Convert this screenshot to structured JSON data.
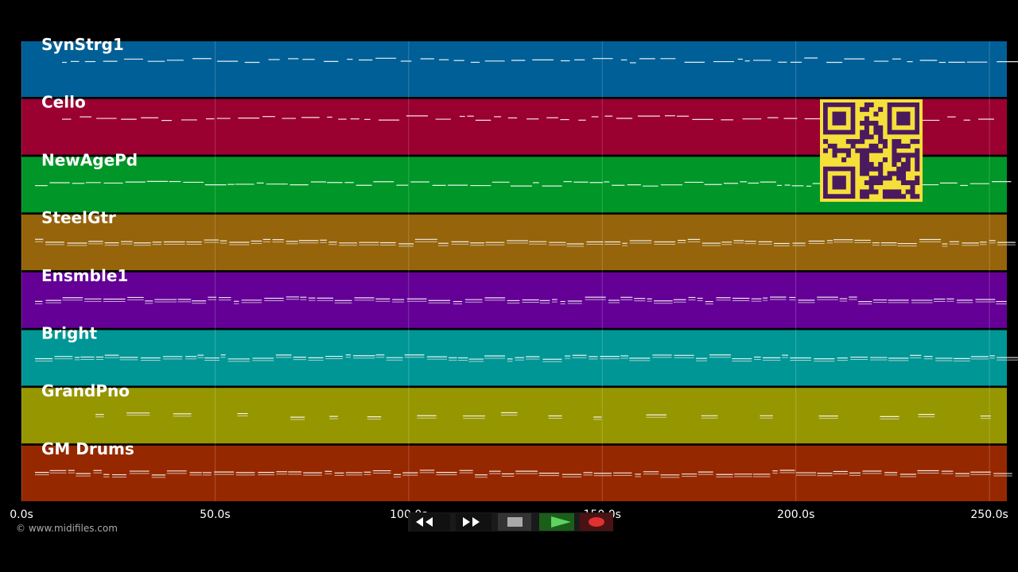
{
  "tracks": [
    {
      "name": "SynStrg1",
      "color": "#005f96"
    },
    {
      "name": "Cello",
      "color": "#9a0030"
    },
    {
      "name": "NewAgePd",
      "color": "#009628"
    },
    {
      "name": "SteelGtr",
      "color": "#96640a"
    },
    {
      "name": "Ensmble1",
      "color": "#640096"
    },
    {
      "name": "Bright",
      "color": "#009696"
    },
    {
      "name": "GrandPno",
      "color": "#969600"
    },
    {
      "name": "GM Drums",
      "color": "#962800"
    }
  ],
  "time_axis": {
    "xlim": [
      0,
      254.5
    ],
    "ticks": [
      {
        "value": 0,
        "label": "0.0s"
      },
      {
        "value": 50,
        "label": "50.0s"
      },
      {
        "value": 100,
        "label": "100.0s"
      },
      {
        "value": 150,
        "label": "150.0s"
      },
      {
        "value": 200,
        "label": "200.0s"
      },
      {
        "value": 250,
        "label": "250.0s"
      }
    ]
  },
  "footer": {
    "copyright": "© www.midifiles.com"
  }
}
